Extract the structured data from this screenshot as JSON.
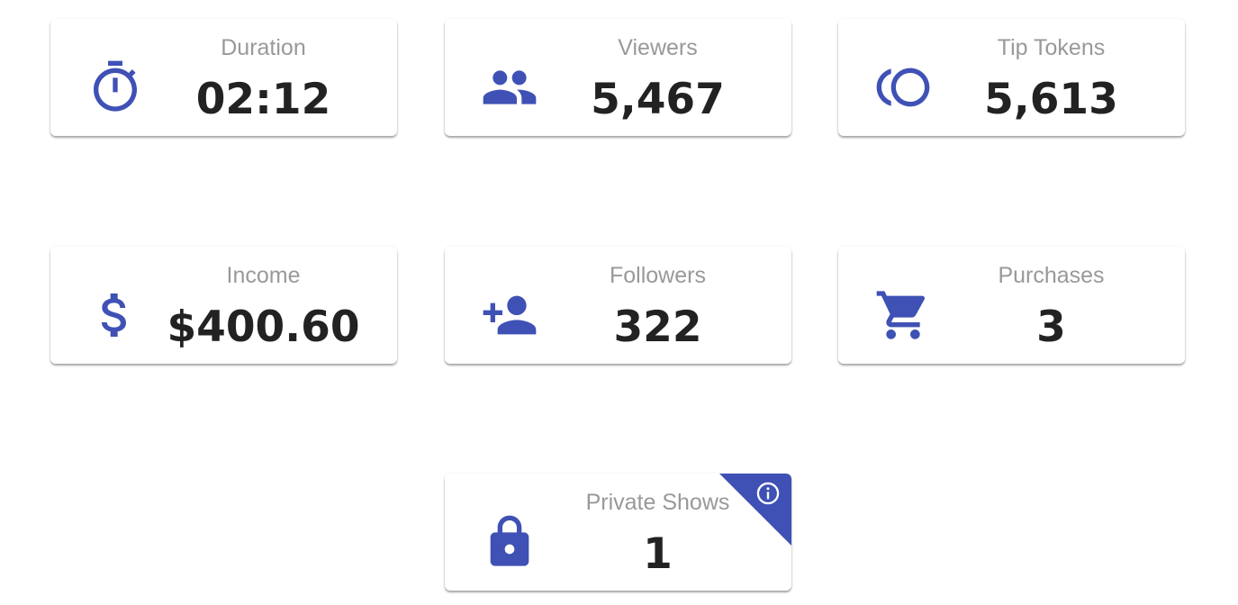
{
  "accent": "#3f51b5",
  "cards": [
    {
      "title": "Duration",
      "value": "02:12",
      "icon": "timer-icon"
    },
    {
      "title": "Viewers",
      "value": "5,467",
      "icon": "people-icon"
    },
    {
      "title": "Tip Tokens",
      "value": "5,613",
      "icon": "tokens-icon"
    },
    {
      "title": "Income",
      "value": "$400.60",
      "icon": "dollar-icon"
    },
    {
      "title": "Followers",
      "value": "322",
      "icon": "person-add-icon"
    },
    {
      "title": "Purchases",
      "value": "3",
      "icon": "cart-icon"
    },
    {
      "title": "Private Shows",
      "value": "1",
      "icon": "lock-icon",
      "info": "info-icon"
    }
  ]
}
